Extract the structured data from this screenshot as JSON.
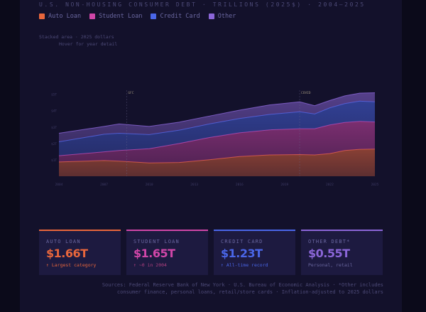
{
  "header": {
    "title": "U.S. NON-HOUSING CONSUMER DEBT · TRILLIONS (2025$) · 2004–2025",
    "subtitle_1": "Stacked area · 2025 dollars",
    "subtitle_2": "Hover for year detail"
  },
  "chart_data": {
    "type": "area",
    "stacked": true,
    "x": [
      2004,
      2007,
      2008,
      2010,
      2012,
      2014,
      2016,
      2018,
      2020,
      2021,
      2022,
      2023,
      2024,
      2025
    ],
    "series": [
      {
        "name": "Auto Loan",
        "color": "#e8663c",
        "values": [
          0.87,
          0.96,
          0.92,
          0.81,
          0.84,
          1.01,
          1.2,
          1.3,
          1.32,
          1.3,
          1.38,
          1.57,
          1.64,
          1.66
        ]
      },
      {
        "name": "Student Loan",
        "color": "#d046a8",
        "values": [
          0.38,
          0.53,
          0.65,
          0.87,
          1.16,
          1.35,
          1.45,
          1.53,
          1.58,
          1.6,
          1.75,
          1.71,
          1.71,
          1.65
        ]
      },
      {
        "name": "Credit Card",
        "color": "#4a66e8",
        "values": [
          0.85,
          1.07,
          1.05,
          0.86,
          0.81,
          0.83,
          0.87,
          0.94,
          1.03,
          0.9,
          1.04,
          1.15,
          1.23,
          1.23
        ]
      },
      {
        "name": "Other",
        "color": "#8b66d8",
        "values": [
          0.52,
          0.48,
          0.57,
          0.5,
          0.49,
          0.48,
          0.51,
          0.58,
          0.61,
          0.5,
          0.45,
          0.47,
          0.49,
          0.55
        ]
      }
    ],
    "xlim": [
      2004,
      2025
    ],
    "ylim": [
      0,
      5.2
    ],
    "yticks": [
      1,
      2,
      3,
      4,
      5
    ],
    "ytick_labels": [
      "$1T",
      "$2T",
      "$3T",
      "$4T",
      "$5T"
    ],
    "xticks": [
      2004,
      2007,
      2010,
      2013,
      2016,
      2019,
      2022,
      2025
    ],
    "xtick_labels": [
      "2004",
      "2007",
      "2010",
      "2013",
      "2016",
      "2019",
      "2022",
      "2025"
    ],
    "annotations": [
      {
        "x": 2008.5,
        "label": "GFC"
      },
      {
        "x": 2020,
        "label": "COVID"
      }
    ],
    "grid": false,
    "legend": "top-left"
  },
  "cards": [
    {
      "label": "AUTO LOAN",
      "value": "$1.66T",
      "note": "↑ Largest category",
      "color": "#e8663c",
      "note_color": "#e8663c"
    },
    {
      "label": "STUDENT LOAN",
      "value": "$1.65T",
      "note": "↑ ~0 in 2004",
      "color": "#d046a8",
      "note_color": "#b0407f"
    },
    {
      "label": "CREDIT CARD",
      "value": "$1.23T",
      "note": "↑ All-time record",
      "color": "#4a66e8",
      "note_color": "#4a66e8"
    },
    {
      "label": "OTHER DEBT*",
      "value": "$0.55T",
      "note": "Personal, retail",
      "color": "#8b66d8",
      "note_color": "#6a67a0"
    }
  ],
  "footer": {
    "line1": "Sources: Federal Reserve Bank of New York · U.S. Bureau of Economic Analysis · *Other includes",
    "line2": "consumer finance, personal loans, retail/store cards · Inflation-adjusted to 2025 dollars"
  }
}
